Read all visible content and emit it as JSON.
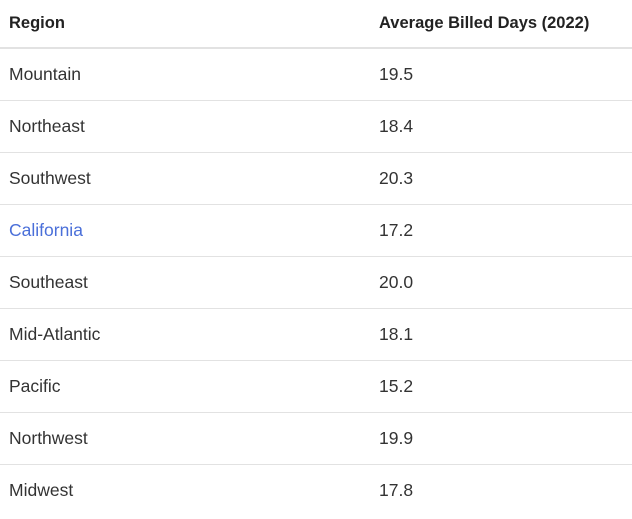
{
  "table": {
    "headers": {
      "region": "Region",
      "days": "Average Billed Days (2022)"
    },
    "rows": [
      {
        "region": "Mountain",
        "days": "19.5",
        "link": false
      },
      {
        "region": "Northeast",
        "days": "18.4",
        "link": false
      },
      {
        "region": "Southwest",
        "days": "20.3",
        "link": false
      },
      {
        "region": "California",
        "days": "17.2",
        "link": true
      },
      {
        "region": "Southeast",
        "days": "20.0",
        "link": false
      },
      {
        "region": "Mid-Atlantic",
        "days": "18.1",
        "link": false
      },
      {
        "region": "Pacific",
        "days": "15.2",
        "link": false
      },
      {
        "region": "Northwest",
        "days": "19.9",
        "link": false
      },
      {
        "region": "Midwest",
        "days": "17.8",
        "link": false
      }
    ]
  },
  "colors": {
    "link": "#4a6fd9",
    "text": "#333333",
    "border": "#e2e2e2"
  }
}
